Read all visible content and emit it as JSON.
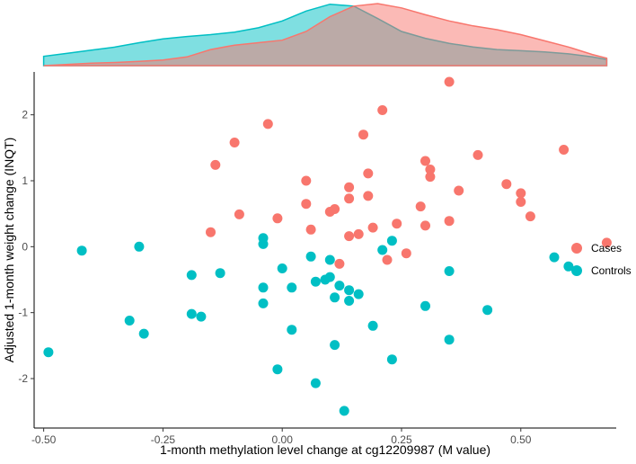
{
  "chart_data": {
    "type": "scatter",
    "title": "",
    "xlabel": "1-month methylation level change at cg12209987 (M value)",
    "ylabel": "Adjusted 1-month weight change (INQT)",
    "xlim": [
      -0.52,
      0.7
    ],
    "ylim": [
      -2.75,
      2.65
    ],
    "x_ticks": [
      -0.5,
      -0.25,
      0.0,
      0.25,
      0.5
    ],
    "x_tick_labels": [
      "-0.50",
      "-0.25",
      "0.00",
      "0.25",
      "0.50"
    ],
    "y_ticks": [
      -2,
      -1,
      0,
      1,
      2
    ],
    "y_tick_labels": [
      "-2",
      "-1",
      "0",
      "1",
      "2"
    ],
    "grid": false,
    "legend_position": "right",
    "marginal": "density-top",
    "series": [
      {
        "name": "Cases",
        "color": "#F8766D",
        "points": [
          [
            0.35,
            2.5
          ],
          [
            0.21,
            2.07
          ],
          [
            -0.03,
            1.86
          ],
          [
            0.17,
            1.7
          ],
          [
            -0.1,
            1.58
          ],
          [
            0.59,
            1.47
          ],
          [
            0.41,
            1.39
          ],
          [
            0.3,
            1.3
          ],
          [
            -0.14,
            1.24
          ],
          [
            0.31,
            1.17
          ],
          [
            0.18,
            1.11
          ],
          [
            0.31,
            1.06
          ],
          [
            0.05,
            1.0
          ],
          [
            0.47,
            0.95
          ],
          [
            0.14,
            0.9
          ],
          [
            0.37,
            0.85
          ],
          [
            0.5,
            0.81
          ],
          [
            0.18,
            0.77
          ],
          [
            0.14,
            0.73
          ],
          [
            0.5,
            0.68
          ],
          [
            0.05,
            0.65
          ],
          [
            0.29,
            0.61
          ],
          [
            0.11,
            0.57
          ],
          [
            0.1,
            0.53
          ],
          [
            -0.09,
            0.49
          ],
          [
            0.52,
            0.46
          ],
          [
            -0.01,
            0.43
          ],
          [
            0.35,
            0.39
          ],
          [
            0.24,
            0.35
          ],
          [
            0.3,
            0.32
          ],
          [
            0.19,
            0.29
          ],
          [
            0.06,
            0.26
          ],
          [
            -0.15,
            0.22
          ],
          [
            0.16,
            0.19
          ],
          [
            0.14,
            0.16
          ],
          [
            0.68,
            0.06
          ],
          [
            0.26,
            -0.1
          ],
          [
            0.22,
            -0.2
          ],
          [
            0.12,
            -0.26
          ]
        ]
      },
      {
        "name": "Controls",
        "color": "#00BFC4",
        "points": [
          [
            0.23,
            0.09
          ],
          [
            -0.04,
            0.13
          ],
          [
            -0.04,
            0.04
          ],
          [
            -0.3,
            0.0
          ],
          [
            -0.42,
            -0.06
          ],
          [
            0.21,
            -0.05
          ],
          [
            0.06,
            -0.15
          ],
          [
            0.57,
            -0.16
          ],
          [
            0.1,
            -0.2
          ],
          [
            0.6,
            -0.3
          ],
          [
            0.0,
            -0.33
          ],
          [
            0.35,
            -0.37
          ],
          [
            -0.13,
            -0.4
          ],
          [
            -0.19,
            -0.43
          ],
          [
            0.1,
            -0.46
          ],
          [
            0.09,
            -0.5
          ],
          [
            0.07,
            -0.53
          ],
          [
            0.12,
            -0.59
          ],
          [
            -0.04,
            -0.62
          ],
          [
            0.02,
            -0.62
          ],
          [
            0.14,
            -0.66
          ],
          [
            0.16,
            -0.72
          ],
          [
            0.11,
            -0.77
          ],
          [
            0.14,
            -0.82
          ],
          [
            -0.04,
            -0.86
          ],
          [
            0.3,
            -0.9
          ],
          [
            0.43,
            -0.96
          ],
          [
            -0.19,
            -1.02
          ],
          [
            -0.17,
            -1.06
          ],
          [
            -0.32,
            -1.12
          ],
          [
            0.19,
            -1.2
          ],
          [
            0.02,
            -1.26
          ],
          [
            -0.29,
            -1.32
          ],
          [
            0.35,
            -1.41
          ],
          [
            0.11,
            -1.49
          ],
          [
            -0.49,
            -1.6
          ],
          [
            0.23,
            -1.71
          ],
          [
            -0.01,
            -1.86
          ],
          [
            0.07,
            -2.07
          ],
          [
            0.13,
            -2.49
          ]
        ]
      }
    ],
    "density": {
      "x": [
        -0.5,
        -0.45,
        -0.4,
        -0.35,
        -0.3,
        -0.25,
        -0.2,
        -0.15,
        -0.1,
        -0.05,
        0.0,
        0.05,
        0.1,
        0.15,
        0.2,
        0.25,
        0.3,
        0.35,
        0.4,
        0.45,
        0.5,
        0.55,
        0.6,
        0.65,
        0.68
      ],
      "series": [
        {
          "name": "Cases",
          "values": [
            0.0,
            0.02,
            0.04,
            0.05,
            0.07,
            0.09,
            0.14,
            0.26,
            0.33,
            0.37,
            0.41,
            0.55,
            0.79,
            0.96,
            1.0,
            0.93,
            0.82,
            0.72,
            0.64,
            0.58,
            0.5,
            0.4,
            0.3,
            0.18,
            0.12
          ]
        },
        {
          "name": "Controls",
          "values": [
            0.15,
            0.2,
            0.25,
            0.3,
            0.37,
            0.43,
            0.47,
            0.5,
            0.54,
            0.61,
            0.72,
            0.88,
            0.99,
            0.96,
            0.76,
            0.55,
            0.44,
            0.36,
            0.3,
            0.26,
            0.24,
            0.22,
            0.19,
            0.14,
            0.1
          ]
        }
      ]
    }
  }
}
